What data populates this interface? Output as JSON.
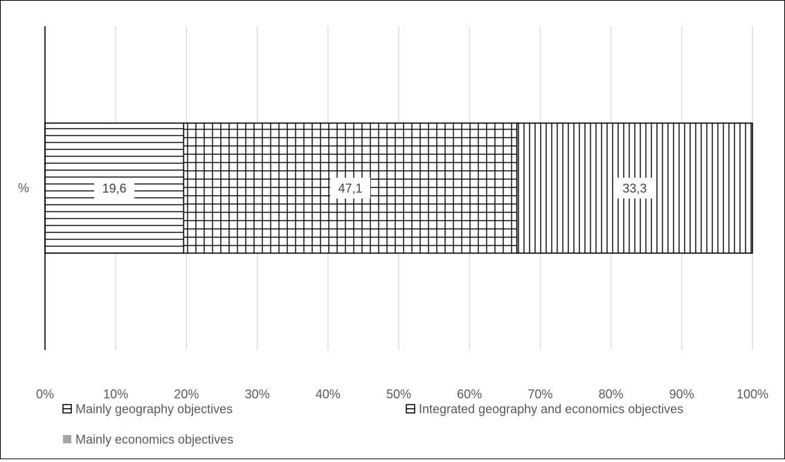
{
  "chart_data": {
    "type": "bar",
    "orientation": "horizontal",
    "stacked": "percent",
    "categories": [
      "%"
    ],
    "series": [
      {
        "name": "Mainly geography objectives",
        "values": [
          19.6
        ],
        "label": "19,6",
        "pattern": "horizontal-lines"
      },
      {
        "name": "Integrated geography and economics objectives",
        "values": [
          47.1
        ],
        "label": "47,1",
        "pattern": "grid"
      },
      {
        "name": "Mainly economics objectives",
        "values": [
          33.3
        ],
        "label": "33,3",
        "pattern": "vertical-lines"
      }
    ],
    "xlim": [
      0,
      100
    ],
    "xticks": [
      0,
      10,
      20,
      30,
      40,
      50,
      60,
      70,
      80,
      90,
      100
    ],
    "xtick_labels": [
      "0%",
      "10%",
      "20%",
      "30%",
      "40%",
      "50%",
      "60%",
      "70%",
      "80%",
      "90%",
      "100%"
    ],
    "grid": true,
    "legend_position": "bottom",
    "colors": {
      "line": "#000000",
      "grid": "#d9d9d9",
      "text": "#595959",
      "legend_solid": "#a6a6a6"
    }
  }
}
